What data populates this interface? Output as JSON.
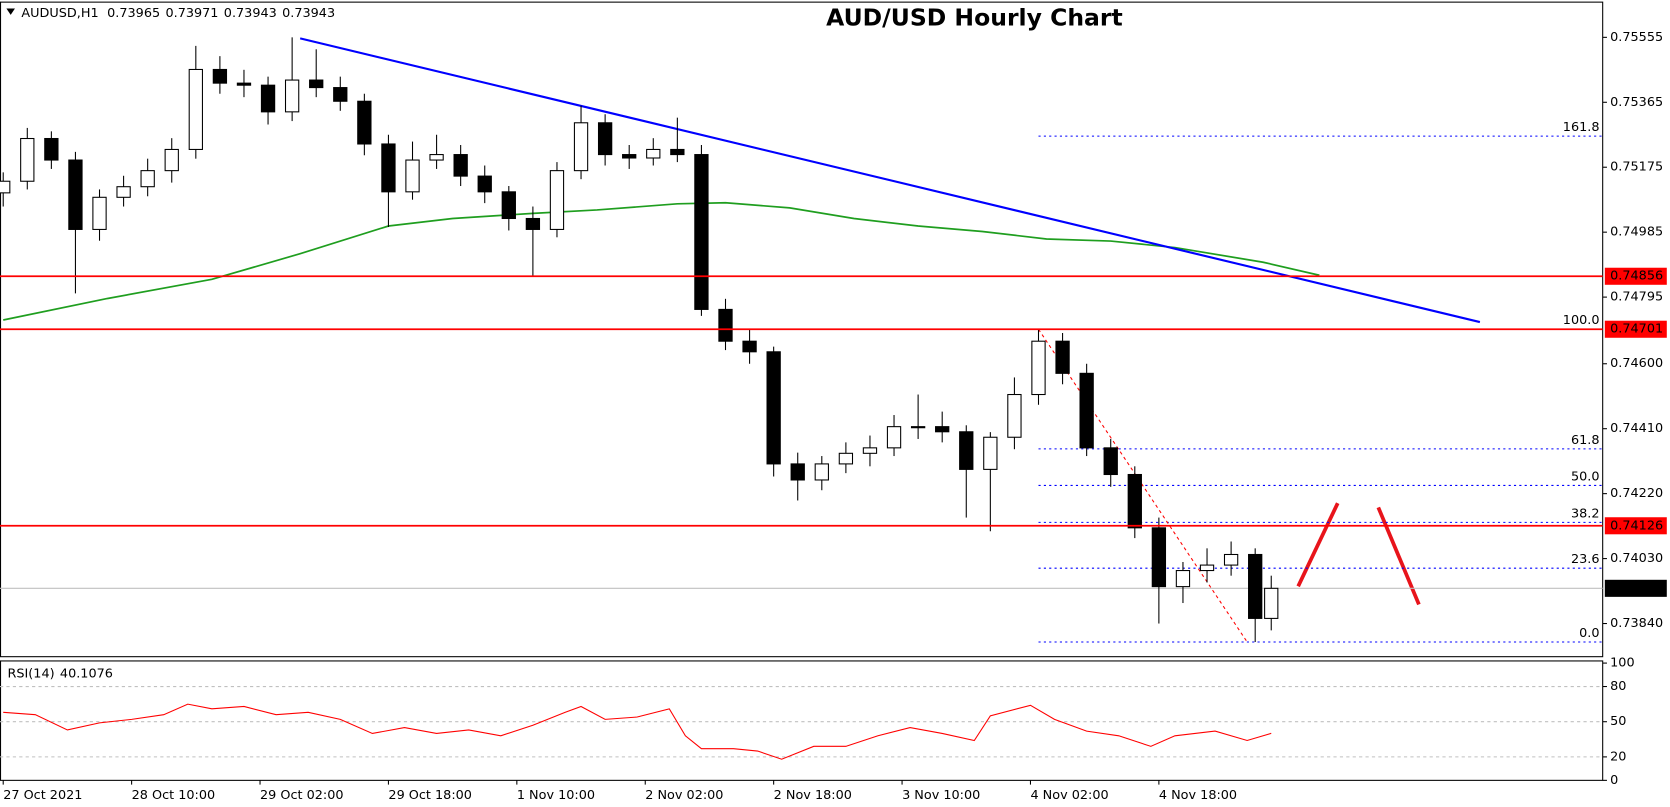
{
  "chart_data": [
    {
      "type": "candlestick",
      "title": "AUD/USD Hourly Chart",
      "header": {
        "symbol": "AUDUSD,H1",
        "ohlc": [
          0.73965,
          0.73971,
          0.73943,
          0.73943
        ]
      },
      "x": [
        0,
        3,
        6,
        9,
        12,
        15,
        18,
        21,
        24,
        27,
        30,
        33,
        36,
        39,
        42,
        45,
        48,
        51,
        54,
        57,
        60,
        63,
        66,
        69,
        72,
        75,
        78,
        81,
        84,
        87,
        90,
        93,
        96,
        99,
        102,
        105,
        108,
        111,
        114,
        117,
        120,
        123,
        126,
        129,
        132,
        135,
        138,
        141,
        144,
        147,
        150,
        153,
        156,
        158
      ],
      "open": [
        0.751,
        0.75134,
        0.75259,
        0.75196,
        0.74993,
        0.75087,
        0.75118,
        0.75165,
        0.75227,
        0.75461,
        0.75421,
        0.75415,
        0.75337,
        0.7543,
        0.75408,
        0.75368,
        0.75243,
        0.75103,
        0.75196,
        0.75212,
        0.75149,
        0.75103,
        0.75025,
        0.74993,
        0.75165,
        0.75305,
        0.75212,
        0.75202,
        0.75227,
        0.75212,
        0.74759,
        0.74666,
        0.74635,
        0.74307,
        0.7426,
        0.74307,
        0.74338,
        0.74354,
        0.74416,
        0.74416,
        0.74401,
        0.74291,
        0.74385,
        0.7451,
        0.74666,
        0.74572,
        0.74354,
        0.74276,
        0.7412,
        0.73948,
        0.73995,
        0.74011,
        0.74042,
        0.73855
      ],
      "high": [
        0.7516,
        0.7529,
        0.7528,
        0.7522,
        0.7511,
        0.7515,
        0.752,
        0.7526,
        0.7553,
        0.755,
        0.7546,
        0.7544,
        0.75555,
        0.7552,
        0.7544,
        0.7539,
        0.7527,
        0.7525,
        0.7527,
        0.7524,
        0.7518,
        0.7512,
        0.7506,
        0.7519,
        0.75355,
        0.7533,
        0.7524,
        0.7526,
        0.7532,
        0.7524,
        0.7479,
        0.747,
        0.7465,
        0.7434,
        0.7433,
        0.7437,
        0.7439,
        0.7445,
        0.7451,
        0.7446,
        0.7442,
        0.744,
        0.7456,
        0.74701,
        0.7469,
        0.746,
        0.7438,
        0.743,
        0.7415,
        0.7402,
        0.7406,
        0.7408,
        0.7406,
        0.7398
      ],
      "low": [
        0.7506,
        0.7511,
        0.7517,
        0.74806,
        0.7496,
        0.7506,
        0.7509,
        0.7513,
        0.752,
        0.7539,
        0.7538,
        0.753,
        0.7531,
        0.7538,
        0.7534,
        0.7521,
        0.75,
        0.7508,
        0.7517,
        0.7512,
        0.7507,
        0.7499,
        0.74856,
        0.7497,
        0.7514,
        0.7518,
        0.7517,
        0.7518,
        0.7519,
        0.7474,
        0.7464,
        0.746,
        0.7427,
        0.742,
        0.7423,
        0.7428,
        0.743,
        0.7433,
        0.7438,
        0.7437,
        0.7415,
        0.7411,
        0.7435,
        0.7448,
        0.7454,
        0.7433,
        0.7424,
        0.7409,
        0.7384,
        0.739,
        0.7396,
        0.7398,
        0.73786,
        0.7382
      ],
      "close": [
        0.75134,
        0.75259,
        0.75196,
        0.74993,
        0.75087,
        0.75118,
        0.75165,
        0.75227,
        0.75461,
        0.75421,
        0.75415,
        0.75337,
        0.7543,
        0.75408,
        0.75368,
        0.75243,
        0.75103,
        0.75196,
        0.75212,
        0.75149,
        0.75103,
        0.75025,
        0.74993,
        0.75165,
        0.75305,
        0.75212,
        0.75202,
        0.75227,
        0.75212,
        0.74759,
        0.74666,
        0.74635,
        0.74307,
        0.7426,
        0.74307,
        0.74338,
        0.74354,
        0.74416,
        0.74416,
        0.74401,
        0.74291,
        0.74385,
        0.7451,
        0.74666,
        0.74572,
        0.74354,
        0.74276,
        0.7412,
        0.73948,
        0.73995,
        0.74011,
        0.74042,
        0.73855,
        0.73943
      ],
      "up_color": "#ffffff",
      "down_color": "#000000",
      "xlim": [
        -0.4,
        199.3
      ],
      "ylim": [
        0.73743,
        0.75658
      ],
      "xticks": [
        {
          "value": 0,
          "label": "27 Oct 2021"
        },
        {
          "value": 16,
          "label": "28 Oct 10:00"
        },
        {
          "value": 32,
          "label": "29 Oct 02:00"
        },
        {
          "value": 48,
          "label": "29 Oct 18:00"
        },
        {
          "value": 64,
          "label": "1 Nov 10:00"
        },
        {
          "value": 80,
          "label": "2 Nov 02:00"
        },
        {
          "value": 96,
          "label": "2 Nov 18:00"
        },
        {
          "value": 112,
          "label": "3 Nov 10:00"
        },
        {
          "value": 128,
          "label": "4 Nov 02:00"
        },
        {
          "value": 144,
          "label": "4 Nov 18:00"
        }
      ],
      "yticks": [
        0.75555,
        0.75365,
        0.75175,
        0.74985,
        0.74795,
        {
          "value": 0.746,
          "label": "0.74600"
        },
        {
          "value": 0.7441,
          "label": "0.74410"
        },
        {
          "value": 0.7422,
          "label": "0.74220"
        },
        {
          "value": 0.7403,
          "label": "0.74030"
        },
        {
          "value": 0.7384,
          "label": "0.73840"
        }
      ],
      "levels": [
        {
          "value": 0.74856,
          "color": "#ff0000"
        },
        {
          "value": 0.74701,
          "color": "#ff0000"
        },
        {
          "value": 0.74126,
          "color": "#ff0000"
        }
      ],
      "current_price": 0.73943,
      "trendline": {
        "x": [
          37,
          184
        ],
        "values": [
          0.75552,
          0.74722
        ],
        "color": "#0000ff"
      },
      "moving_average": {
        "x": [
          0,
          13,
          26,
          37,
          48,
          56,
          66,
          74,
          84,
          90,
          98,
          106,
          114,
          122,
          130,
          138,
          146,
          157,
          164
        ],
        "values": [
          0.74728,
          0.74791,
          0.74847,
          0.74922,
          0.75003,
          0.75025,
          0.7504,
          0.7505,
          0.75068,
          0.75071,
          0.75056,
          0.75025,
          0.75003,
          0.74987,
          0.74965,
          0.74959,
          0.7494,
          0.74897,
          0.74859
        ],
        "color": "#1f9e1f"
      },
      "fib": {
        "start_x": 129,
        "color": "#0000ff",
        "levels": [
          {
            "label": "161.8",
            "value": 0.75266
          },
          {
            "label": "100.0",
            "value": 0.74701
          },
          {
            "label": "61.8",
            "value": 0.74351
          },
          {
            "label": "50.0",
            "value": 0.74244
          },
          {
            "label": "38.2",
            "value": 0.74136
          },
          {
            "label": "23.6",
            "value": 0.74002
          },
          {
            "label": "0.0",
            "value": 0.73786
          }
        ]
      },
      "fib_anchor": {
        "x": [
          129,
          155
        ],
        "values": [
          0.74701,
          0.73786
        ],
        "color": "#ff0000"
      }
    },
    {
      "type": "line",
      "title": "RSI(14)",
      "last_value": 40.1076,
      "color": "#ff0000",
      "x": [
        0,
        4,
        8,
        12,
        16,
        20,
        23,
        26,
        30,
        34,
        38,
        42,
        46,
        50,
        54,
        58,
        62,
        66,
        70,
        72,
        75,
        79,
        83,
        85,
        87,
        91,
        94,
        97,
        101,
        105,
        109,
        113,
        117,
        121,
        123,
        128,
        131,
        135,
        139,
        143,
        146,
        151,
        155,
        158
      ],
      "values": [
        58,
        56,
        43,
        49,
        52,
        56,
        65,
        61,
        63,
        56,
        58,
        52,
        40,
        45,
        40,
        43,
        38,
        47,
        58,
        63,
        52,
        54,
        61,
        38,
        27,
        27,
        25,
        18,
        29,
        29,
        38,
        45,
        40,
        34,
        55,
        64,
        52,
        42,
        38,
        29,
        38,
        42,
        34,
        40.1076
      ],
      "ylim": [
        0,
        100
      ],
      "yticks": [
        100,
        80,
        50,
        20,
        0
      ]
    }
  ]
}
